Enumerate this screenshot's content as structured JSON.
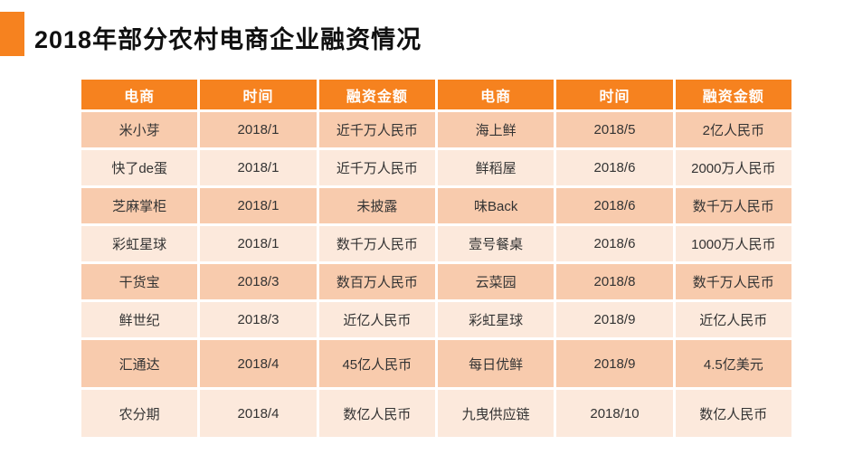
{
  "title": "2018年部分农村电商企业融资情况",
  "colors": {
    "accent_orange": "#F6821F",
    "header_bg": "#F6821F",
    "header_text": "#FFFFFF",
    "row_band_dark": "#F8CBAD",
    "row_band_light": "#FCE9DC",
    "cell_text": "#333333",
    "title_text": "#101010",
    "background": "#FFFFFF"
  },
  "chart_data": {
    "type": "table",
    "title": "2018年部分农村电商企业融资情况",
    "columns": [
      "电商",
      "时间",
      "融资金额",
      "电商",
      "时间",
      "融资金额"
    ],
    "rows": [
      [
        "米小芽",
        "2018/1",
        "近千万人民币",
        "海上鲜",
        "2018/5",
        "2亿人民币"
      ],
      [
        "快了de蛋",
        "2018/1",
        "近千万人民币",
        "鲜稻屋",
        "2018/6",
        "2000万人民币"
      ],
      [
        "芝麻掌柜",
        "2018/1",
        "未披露",
        "味Back",
        "2018/6",
        "数千万人民币"
      ],
      [
        "彩虹星球",
        "2018/1",
        "数千万人民币",
        "壹号餐桌",
        "2018/6",
        "1000万人民币"
      ],
      [
        "干货宝",
        "2018/3",
        "数百万人民币",
        "云菜园",
        "2018/8",
        "数千万人民币"
      ],
      [
        "鲜世纪",
        "2018/3",
        "近亿人民币",
        "彩虹星球",
        "2018/9",
        "近亿人民币"
      ],
      [
        "汇通达",
        "2018/4",
        "45亿人民币",
        "每日优鲜",
        "2018/9",
        "4.5亿美元"
      ],
      [
        "农分期",
        "2018/4",
        "数亿人民币",
        "九曳供应链",
        "2018/10",
        "数亿人民币"
      ]
    ]
  }
}
